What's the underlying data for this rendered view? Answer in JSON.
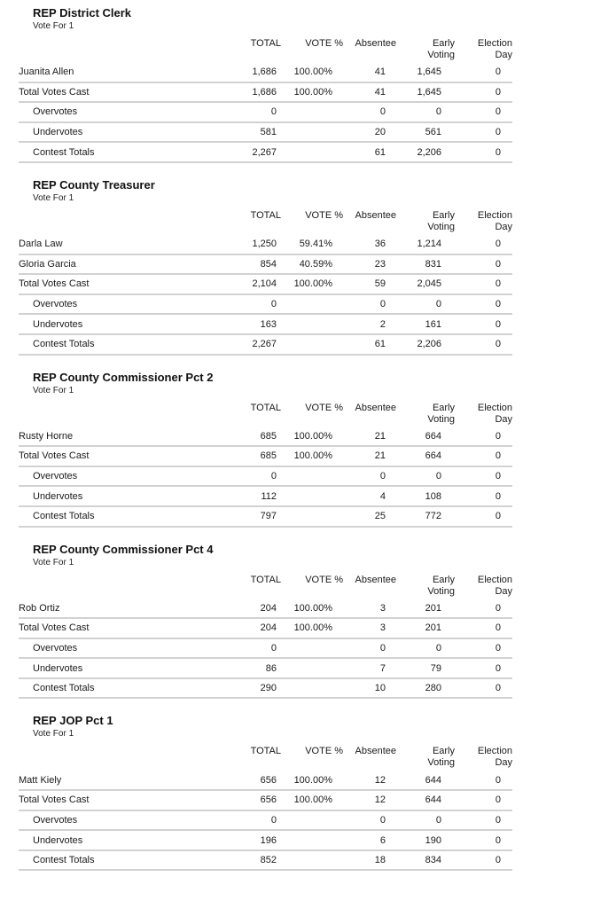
{
  "report": {
    "columns": [
      "TOTAL",
      "VOTE %",
      "Absentee",
      "Early\nVoting",
      "Election\nDay"
    ],
    "contests": [
      {
        "title": "REP District Clerk",
        "vote_for": "Vote For 1",
        "rows": [
          {
            "label": "Juanita Allen",
            "indent": false,
            "values": [
              "1,686",
              "100.00%",
              "41",
              "1,645",
              "0"
            ]
          },
          {
            "label": "Total Votes Cast",
            "indent": false,
            "values": [
              "1,686",
              "100.00%",
              "41",
              "1,645",
              "0"
            ]
          },
          {
            "label": "Overvotes",
            "indent": true,
            "values": [
              "0",
              "",
              "0",
              "0",
              "0"
            ]
          },
          {
            "label": "Undervotes",
            "indent": true,
            "values": [
              "581",
              "",
              "20",
              "561",
              "0"
            ]
          },
          {
            "label": "Contest Totals",
            "indent": true,
            "values": [
              "2,267",
              "",
              "61",
              "2,206",
              "0"
            ]
          }
        ]
      },
      {
        "title": "REP County Treasurer",
        "vote_for": "Vote For 1",
        "rows": [
          {
            "label": "Darla Law",
            "indent": false,
            "values": [
              "1,250",
              "59.41%",
              "36",
              "1,214",
              "0"
            ]
          },
          {
            "label": "Gloria Garcia",
            "indent": false,
            "values": [
              "854",
              "40.59%",
              "23",
              "831",
              "0"
            ]
          },
          {
            "label": "Total Votes Cast",
            "indent": false,
            "values": [
              "2,104",
              "100.00%",
              "59",
              "2,045",
              "0"
            ]
          },
          {
            "label": "Overvotes",
            "indent": true,
            "values": [
              "0",
              "",
              "0",
              "0",
              "0"
            ]
          },
          {
            "label": "Undervotes",
            "indent": true,
            "values": [
              "163",
              "",
              "2",
              "161",
              "0"
            ]
          },
          {
            "label": "Contest Totals",
            "indent": true,
            "values": [
              "2,267",
              "",
              "61",
              "2,206",
              "0"
            ]
          }
        ]
      },
      {
        "title": "REP County Commissioner Pct 2",
        "vote_for": "Vote For 1",
        "rows": [
          {
            "label": "Rusty Horne",
            "indent": false,
            "values": [
              "685",
              "100.00%",
              "21",
              "664",
              "0"
            ]
          },
          {
            "label": "Total Votes Cast",
            "indent": false,
            "values": [
              "685",
              "100.00%",
              "21",
              "664",
              "0"
            ]
          },
          {
            "label": "Overvotes",
            "indent": true,
            "values": [
              "0",
              "",
              "0",
              "0",
              "0"
            ]
          },
          {
            "label": "Undervotes",
            "indent": true,
            "values": [
              "112",
              "",
              "4",
              "108",
              "0"
            ]
          },
          {
            "label": "Contest Totals",
            "indent": true,
            "values": [
              "797",
              "",
              "25",
              "772",
              "0"
            ]
          }
        ]
      },
      {
        "title": "REP County Commissioner Pct 4",
        "vote_for": "Vote For 1",
        "rows": [
          {
            "label": "Rob Ortiz",
            "indent": false,
            "values": [
              "204",
              "100.00%",
              "3",
              "201",
              "0"
            ]
          },
          {
            "label": "Total Votes Cast",
            "indent": false,
            "values": [
              "204",
              "100.00%",
              "3",
              "201",
              "0"
            ]
          },
          {
            "label": "Overvotes",
            "indent": true,
            "values": [
              "0",
              "",
              "0",
              "0",
              "0"
            ]
          },
          {
            "label": "Undervotes",
            "indent": true,
            "values": [
              "86",
              "",
              "7",
              "79",
              "0"
            ]
          },
          {
            "label": "Contest Totals",
            "indent": true,
            "values": [
              "290",
              "",
              "10",
              "280",
              "0"
            ]
          }
        ]
      },
      {
        "title": "REP JOP Pct 1",
        "vote_for": "Vote For 1",
        "rows": [
          {
            "label": "Matt Kiely",
            "indent": false,
            "values": [
              "656",
              "100.00%",
              "12",
              "644",
              "0"
            ]
          },
          {
            "label": "Total Votes Cast",
            "indent": false,
            "values": [
              "656",
              "100.00%",
              "12",
              "644",
              "0"
            ]
          },
          {
            "label": "Overvotes",
            "indent": true,
            "values": [
              "0",
              "",
              "0",
              "0",
              "0"
            ]
          },
          {
            "label": "Undervotes",
            "indent": true,
            "values": [
              "196",
              "",
              "6",
              "190",
              "0"
            ]
          },
          {
            "label": "Contest Totals",
            "indent": true,
            "values": [
              "852",
              "",
              "18",
              "834",
              "0"
            ]
          }
        ]
      }
    ]
  },
  "colors": {
    "background": "#ffffff",
    "text": "#1a1a1a",
    "row_divider": "#d2d2d2"
  }
}
